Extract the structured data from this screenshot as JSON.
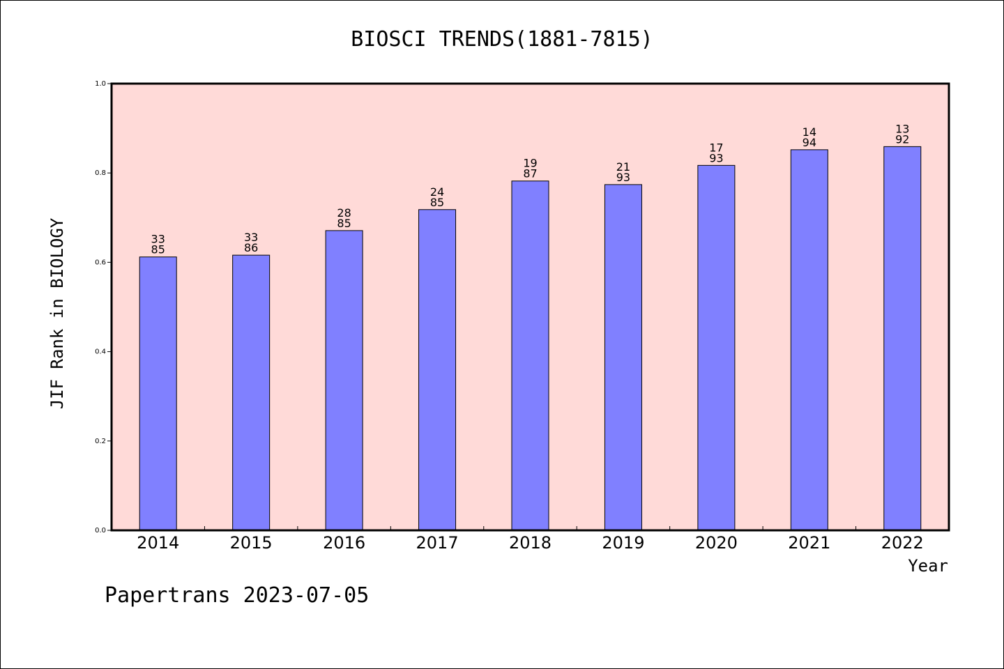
{
  "chart_data": {
    "type": "bar",
    "title": "BIOSCI TRENDS(1881-7815)",
    "xlabel": "Year",
    "ylabel": "JIF Rank in BIOLOGY",
    "ylim": [
      0,
      1.0
    ],
    "yticks": [
      "0.0",
      "0.2",
      "0.4",
      "0.6",
      "0.8",
      "1.0"
    ],
    "categories": [
      "2014",
      "2015",
      "2016",
      "2017",
      "2018",
      "2019",
      "2020",
      "2021",
      "2022"
    ],
    "values": [
      0.612,
      0.616,
      0.671,
      0.718,
      0.782,
      0.774,
      0.817,
      0.852,
      0.859
    ],
    "rank_labels": [
      {
        "rank": "33",
        "total": "85"
      },
      {
        "rank": "33",
        "total": "86"
      },
      {
        "rank": "28",
        "total": "85"
      },
      {
        "rank": "24",
        "total": "85"
      },
      {
        "rank": "19",
        "total": "87"
      },
      {
        "rank": "21",
        "total": "93"
      },
      {
        "rank": "17",
        "total": "93"
      },
      {
        "rank": "14",
        "total": "94"
      },
      {
        "rank": "13",
        "total": "92"
      }
    ],
    "colors": {
      "plot_background": "#ffdad8",
      "bar_fill": "#8080ff",
      "bar_stroke": "#000000"
    },
    "grid": false,
    "legend": "none"
  },
  "footer": "Papertrans 2023-07-05"
}
